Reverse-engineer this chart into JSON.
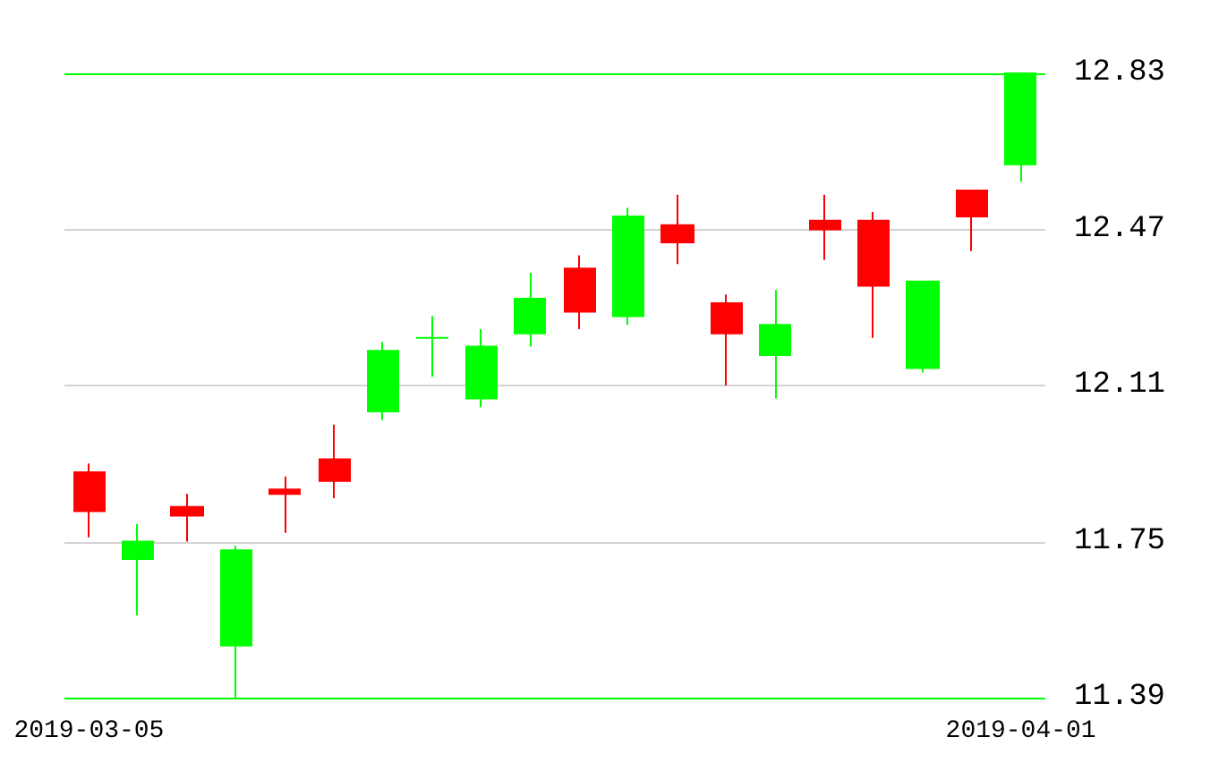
{
  "chart_data": {
    "type": "candlestick",
    "categories": [
      "2019-03-05",
      null,
      null,
      null,
      null,
      null,
      null,
      null,
      null,
      null,
      null,
      null,
      null,
      null,
      null,
      null,
      null,
      null,
      null,
      "2019-04-01"
    ],
    "ohlc": [
      [
        11.91,
        11.93,
        11.76,
        11.82
      ],
      [
        11.71,
        11.79,
        11.58,
        11.75
      ],
      [
        11.83,
        11.86,
        11.75,
        11.81
      ],
      [
        11.51,
        11.74,
        11.39,
        11.73
      ],
      [
        11.87,
        11.9,
        11.77,
        11.86
      ],
      [
        11.94,
        12.02,
        11.85,
        11.89
      ],
      [
        12.05,
        12.21,
        12.03,
        12.19
      ],
      [
        12.22,
        12.27,
        12.13,
        12.22
      ],
      [
        12.08,
        12.24,
        12.06,
        12.2
      ],
      [
        12.23,
        12.37,
        12.2,
        12.31
      ],
      [
        12.38,
        12.41,
        12.24,
        12.28
      ],
      [
        12.27,
        12.52,
        12.25,
        12.5
      ],
      [
        12.48,
        12.55,
        12.39,
        12.44
      ],
      [
        12.3,
        12.32,
        12.11,
        12.23
      ],
      [
        12.18,
        12.33,
        12.08,
        12.25
      ],
      [
        12.49,
        12.55,
        12.4,
        12.47
      ],
      [
        12.49,
        12.51,
        12.22,
        12.34
      ],
      [
        12.15,
        12.35,
        12.14,
        12.35
      ],
      [
        12.56,
        12.56,
        12.42,
        12.5
      ],
      [
        12.62,
        12.83,
        12.58,
        12.83
      ]
    ],
    "colors": [
      "#ff0000",
      "#00ff00",
      "#ff0000",
      "#00ff00",
      "#ff0000",
      "#ff0000",
      "#00ff00",
      "#00ff00",
      "#00ff00",
      "#00ff00",
      "#ff0000",
      "#00ff00",
      "#ff0000",
      "#ff0000",
      "#00ff00",
      "#ff0000",
      "#ff0000",
      "#00ff00",
      "#ff0000",
      "#00ff00"
    ],
    "ylim": [
      11.39,
      12.83
    ],
    "yticks": [
      11.39,
      11.75,
      12.11,
      12.47,
      12.83
    ],
    "grid": "y"
  }
}
